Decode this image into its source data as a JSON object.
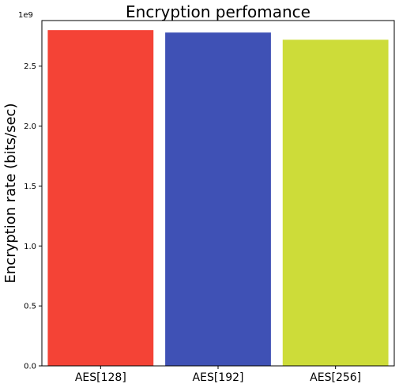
{
  "chart_data": {
    "type": "bar",
    "title": "Encryption perfomance",
    "xlabel": "",
    "ylabel": "Encryption rate (bits/sec)",
    "y_offset_label": "1e9",
    "y_scale": 1000000000,
    "categories": [
      "AES[128]",
      "AES[192]",
      "AES[256]"
    ],
    "values": [
      2800000000,
      2780000000,
      2720000000
    ],
    "colors": [
      "#f44336",
      "#3f51b5",
      "#cddc39"
    ],
    "ylim": [
      0,
      2880000000
    ],
    "yticks": [
      0.0,
      0.5,
      1.0,
      1.5,
      2.0,
      2.5
    ],
    "ytick_labels": [
      "0.0",
      "0.5",
      "1.0",
      "1.5",
      "2.0",
      "2.5"
    ],
    "grid": false,
    "legend": "none"
  }
}
